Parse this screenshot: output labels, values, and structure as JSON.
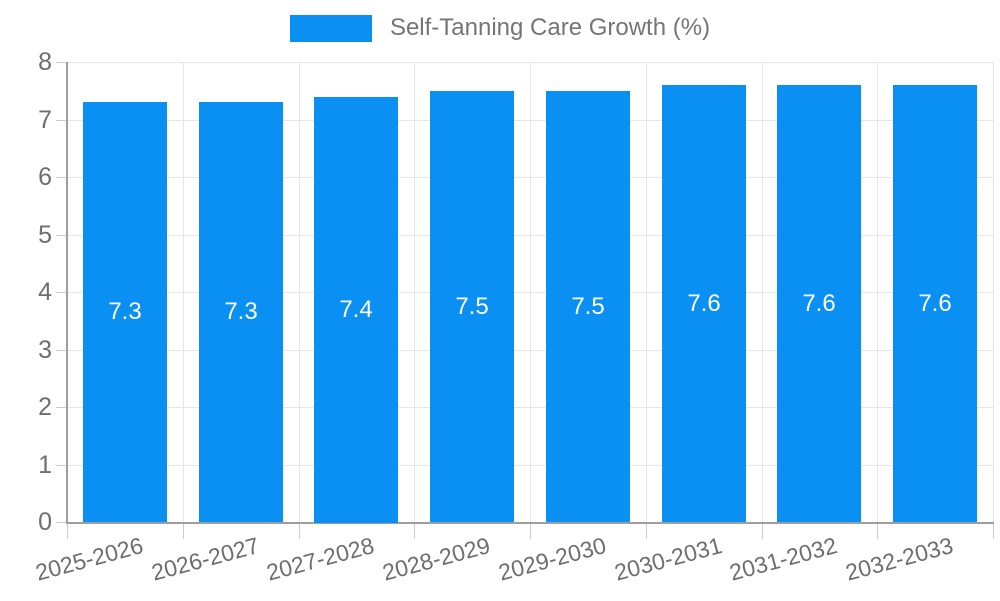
{
  "legend": {
    "label": "Self-Tanning Care Growth (%)",
    "swatch_color": "#0a8ff2"
  },
  "chart_data": {
    "type": "bar",
    "title": "Self-Tanning Care Growth (%)",
    "categories": [
      "2025-2026",
      "2026-2027",
      "2027-2028",
      "2028-2029",
      "2029-2030",
      "2030-2031",
      "2031-2032",
      "2032-2033"
    ],
    "values": [
      7.3,
      7.3,
      7.4,
      7.5,
      7.5,
      7.6,
      7.6,
      7.6
    ],
    "value_labels": [
      "7.3",
      "7.3",
      "7.4",
      "7.5",
      "7.5",
      "7.6",
      "7.6",
      "7.6"
    ],
    "xlabel": "",
    "ylabel": "",
    "ylim": [
      0,
      8
    ],
    "ytick_labels": [
      "0",
      "1",
      "2",
      "3",
      "4",
      "5",
      "6",
      "7",
      "8"
    ],
    "grid": true,
    "legend_position": "top",
    "bar_color": "#0a8ff2",
    "value_label_color": "#ffffff"
  },
  "colors": {
    "background": "#ffffff",
    "grid": "#e6e6e6",
    "axis": "#9e9e9e",
    "tick": "#cccccc",
    "axis_label": "#6e6e6e",
    "legend_text": "#757575"
  }
}
